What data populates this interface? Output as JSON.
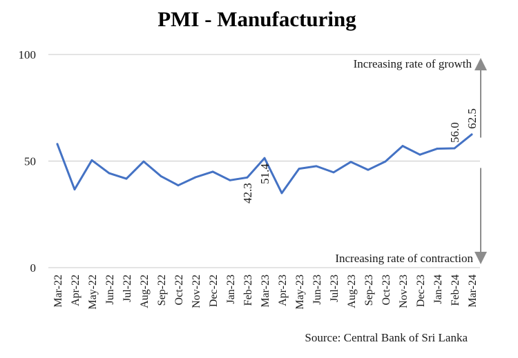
{
  "chart_data": {
    "type": "line",
    "title": "PMI - Manufacturing",
    "source": "Source: Central Bank of Sri Lanka",
    "ylim": [
      0,
      100
    ],
    "yticks": [
      "0",
      "50",
      "100"
    ],
    "categories": [
      "Mar-22",
      "Apr-22",
      "May-22",
      "Jun-22",
      "Jul-22",
      "Aug-22",
      "Sep-22",
      "Oct-22",
      "Nov-22",
      "Dec-22",
      "Jan-23",
      "Feb-23",
      "Mar-23",
      "Apr-23",
      "May-23",
      "Jun-23",
      "Jul-23",
      "Aug-23",
      "Sep-23",
      "Oct-23",
      "Nov-23",
      "Dec-23",
      "Jan-24",
      "Feb-24",
      "Mar-24"
    ],
    "series": [
      {
        "name": "PMI - Manufacturing",
        "values": [
          58.0,
          36.7,
          50.4,
          44.3,
          41.7,
          49.8,
          42.9,
          38.6,
          42.4,
          45.0,
          41.0,
          42.3,
          51.4,
          35.0,
          46.4,
          47.6,
          44.7,
          49.6,
          45.9,
          49.8,
          57.1,
          53.0,
          55.8,
          56.0,
          62.5
        ],
        "color": "#4472C4"
      }
    ],
    "data_labels": [
      {
        "category": "Feb-23",
        "text": "42.3"
      },
      {
        "category": "Mar-23",
        "text": "51.4"
      },
      {
        "category": "Feb-24",
        "text": "56.0"
      },
      {
        "category": "Mar-24",
        "text": "62.5"
      }
    ],
    "annotations": {
      "growth": "Increasing rate of growth",
      "contraction": "Increasing rate of contraction"
    },
    "colors": {
      "line": "#4472C4",
      "grid": "#c8c8c8",
      "arrow": "#8c8c8c"
    }
  }
}
